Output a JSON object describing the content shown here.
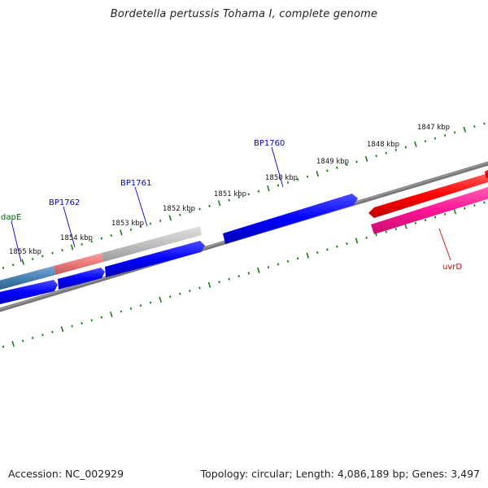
{
  "title": "Bordetella pertussis Tohama I, complete genome",
  "footer": {
    "accession": "Accession: NC_002929",
    "summary": "Topology: circular; Length: 4,086,189 bp; Genes: 3,497"
  },
  "colors": {
    "background": "#ffffff",
    "backbone": "#808080",
    "tick": "#1a7a1a",
    "forward_cds": "#0000ff",
    "reverse_cds": "#ff0000",
    "reverse_cds_alt": "#ff1493",
    "label_blue": "#0000cc",
    "label_red": "#cc0000",
    "label_green": "#006400"
  },
  "scale_labels": [
    "1847 kbp",
    "1848 kbp",
    "1849 kbp",
    "1850 kbp",
    "1851 kbp",
    "1852 kbp",
    "1853 kbp",
    "1854 kbp",
    "1855 kbp"
  ],
  "gene_labels": [
    {
      "name": "BP1760",
      "color": "blue"
    },
    {
      "name": "BP1761",
      "color": "blue"
    },
    {
      "name": "BP1762",
      "color": "blue"
    },
    {
      "name": "dapE",
      "color": "green"
    },
    {
      "name": "uvrD",
      "color": "red"
    }
  ]
}
